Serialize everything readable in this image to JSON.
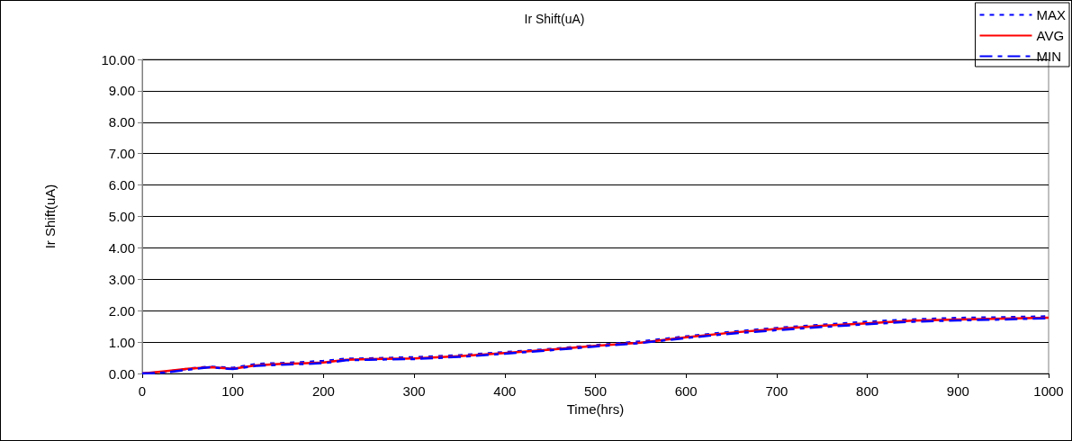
{
  "chart_data": {
    "type": "line",
    "title": "Ir Shift(uA)",
    "xlabel": "Time(hrs)",
    "ylabel": "Ir Shift(uA)",
    "x": [
      0,
      25,
      50,
      75,
      100,
      125,
      150,
      175,
      200,
      225,
      250,
      300,
      350,
      400,
      450,
      500,
      550,
      600,
      650,
      700,
      750,
      800,
      850,
      900,
      950,
      1000
    ],
    "series": [
      {
        "name": "MAX",
        "color": "#0000ff",
        "line_style": "dotted",
        "values": [
          0,
          0.05,
          0.15,
          0.22,
          0.18,
          0.3,
          0.33,
          0.36,
          0.4,
          0.47,
          0.48,
          0.52,
          0.58,
          0.68,
          0.78,
          0.9,
          1.02,
          1.18,
          1.33,
          1.45,
          1.55,
          1.65,
          1.72,
          1.77,
          1.79,
          1.82
        ]
      },
      {
        "name": "AVG",
        "color": "#ff0000",
        "line_style": "solid",
        "values": [
          0,
          0.07,
          0.15,
          0.2,
          0.15,
          0.26,
          0.3,
          0.32,
          0.35,
          0.44,
          0.46,
          0.48,
          0.55,
          0.65,
          0.76,
          0.88,
          0.98,
          1.15,
          1.3,
          1.42,
          1.52,
          1.6,
          1.68,
          1.72,
          1.75,
          1.78
        ]
      },
      {
        "name": "MIN",
        "color": "#0000ff",
        "line_style": "dashed",
        "values": [
          0,
          0.03,
          0.12,
          0.2,
          0.14,
          0.24,
          0.28,
          0.3,
          0.33,
          0.42,
          0.44,
          0.46,
          0.53,
          0.63,
          0.74,
          0.86,
          0.97,
          1.13,
          1.27,
          1.38,
          1.48,
          1.57,
          1.65,
          1.69,
          1.72,
          1.76
        ]
      }
    ],
    "xlim": [
      0,
      1000
    ],
    "xticks": [
      0,
      100,
      200,
      300,
      400,
      500,
      600,
      700,
      800,
      900,
      1000
    ],
    "ylim": [
      0,
      10
    ],
    "yticks": [
      {
        "value": 0,
        "label": "0.00"
      },
      {
        "value": 1,
        "label": "1.00"
      },
      {
        "value": 2,
        "label": "2.00"
      },
      {
        "value": 3,
        "label": "3.00"
      },
      {
        "value": 4,
        "label": "4.00"
      },
      {
        "value": 5,
        "label": "5.00"
      },
      {
        "value": 6,
        "label": "6.00"
      },
      {
        "value": 7,
        "label": "7.00"
      },
      {
        "value": 8,
        "label": "8.00"
      },
      {
        "value": 9,
        "label": "9.00"
      },
      {
        "value": 10,
        "label": "10.00"
      }
    ],
    "grid": "y",
    "legend": "top right",
    "marker": "none"
  }
}
